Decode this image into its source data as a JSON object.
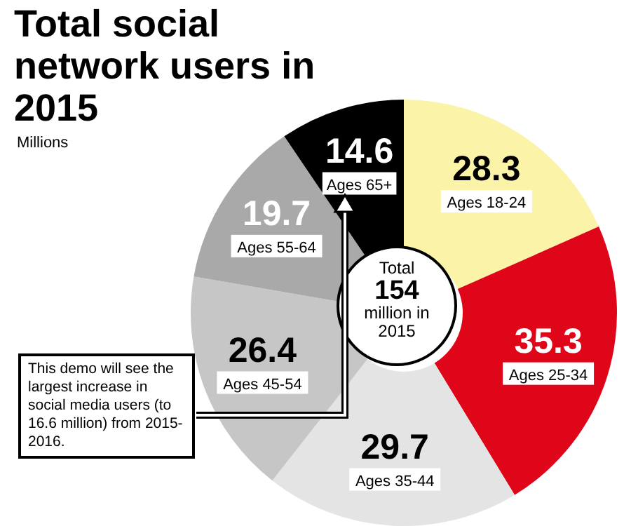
{
  "chart_data": {
    "type": "donut",
    "title": "Total social network users in 2015",
    "subtitle": "Millions",
    "categories": [
      "Ages 18-24",
      "Ages 25-34",
      "Ages 35-44",
      "Ages 45-54",
      "Ages 55-64",
      "Ages 65+"
    ],
    "values": [
      28.3,
      35.3,
      29.7,
      26.4,
      19.7,
      14.6
    ],
    "colors": [
      "#fbf3a8",
      "#e0061a",
      "#e4e4e4",
      "#c6c6c6",
      "#a9a9a9",
      "#000000"
    ],
    "data_labels": true,
    "annotations": [
      "Total 154 million in 2015",
      "This demo will see the largest increase in social media users (to 16.6 million) from 2015-2016."
    ]
  }
}
